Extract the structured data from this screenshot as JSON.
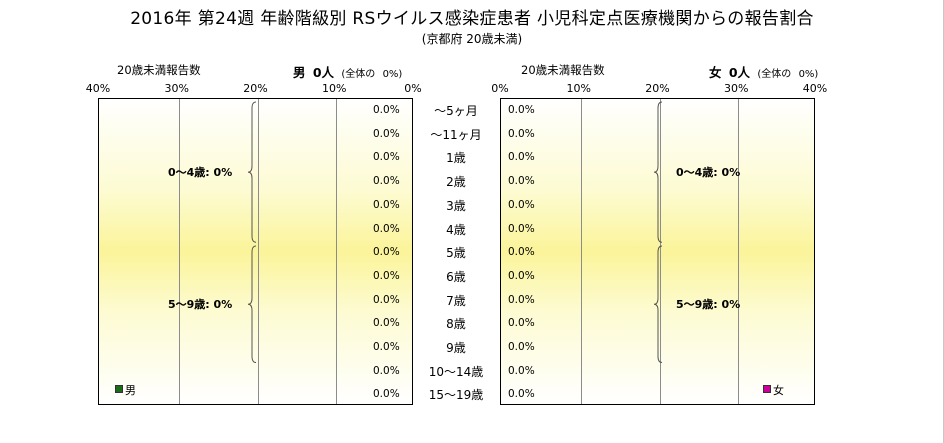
{
  "title": "2016年 第24週 年齢階級別 RSウイルス感染症患者 小児科定点医療機関からの報告割合",
  "subtitle": "(京都府 20歳未満)",
  "chart_data": [
    {
      "type": "bar",
      "side": "left",
      "axis_label": "20歳未満報告数",
      "sex_label": "男",
      "count_label": "0人",
      "share_label": "(全体の",
      "share_value": "0%)",
      "xlim": [
        40,
        0
      ],
      "ticks": [
        "40%",
        "30%",
        "20%",
        "10%",
        "0%"
      ],
      "tick_values": [
        40,
        30,
        20,
        10,
        0
      ],
      "categories": [
        "～5ヶ月",
        "～11ヶ月",
        "1歳",
        "2歳",
        "3歳",
        "4歳",
        "5歳",
        "6歳",
        "7歳",
        "8歳",
        "9歳",
        "10～14歳",
        "15～19歳"
      ],
      "values": [
        0,
        0,
        0,
        0,
        0,
        0,
        0,
        0,
        0,
        0,
        0,
        0,
        0
      ],
      "value_labels": [
        "0.0%",
        "0.0%",
        "0.0%",
        "0.0%",
        "0.0%",
        "0.0%",
        "0.0%",
        "0.0%",
        "0.0%",
        "0.0%",
        "0.0%",
        "0.0%",
        "0.0%"
      ],
      "group_labels": [
        "0～4歳: 0%",
        "5～9歳: 0%"
      ],
      "legend": "男",
      "legend_color": "#1a6b1a",
      "grid": true
    },
    {
      "type": "bar",
      "side": "right",
      "axis_label": "20歳未満報告数",
      "sex_label": "女",
      "count_label": "0人",
      "share_label": "(全体の",
      "share_value": "0%)",
      "xlim": [
        0,
        40
      ],
      "ticks": [
        "0%",
        "10%",
        "20%",
        "30%",
        "40%"
      ],
      "tick_values": [
        0,
        10,
        20,
        30,
        40
      ],
      "categories": [
        "～5ヶ月",
        "～11ヶ月",
        "1歳",
        "2歳",
        "3歳",
        "4歳",
        "5歳",
        "6歳",
        "7歳",
        "8歳",
        "9歳",
        "10～14歳",
        "15～19歳"
      ],
      "values": [
        0,
        0,
        0,
        0,
        0,
        0,
        0,
        0,
        0,
        0,
        0,
        0,
        0
      ],
      "value_labels": [
        "0.0%",
        "0.0%",
        "0.0%",
        "0.0%",
        "0.0%",
        "0.0%",
        "0.0%",
        "0.0%",
        "0.0%",
        "0.0%",
        "0.0%",
        "0.0%",
        "0.0%"
      ],
      "group_labels": [
        "0～4歳: 0%",
        "5～9歳: 0%"
      ],
      "legend": "女",
      "legend_color": "#cc0099",
      "grid": true
    }
  ]
}
